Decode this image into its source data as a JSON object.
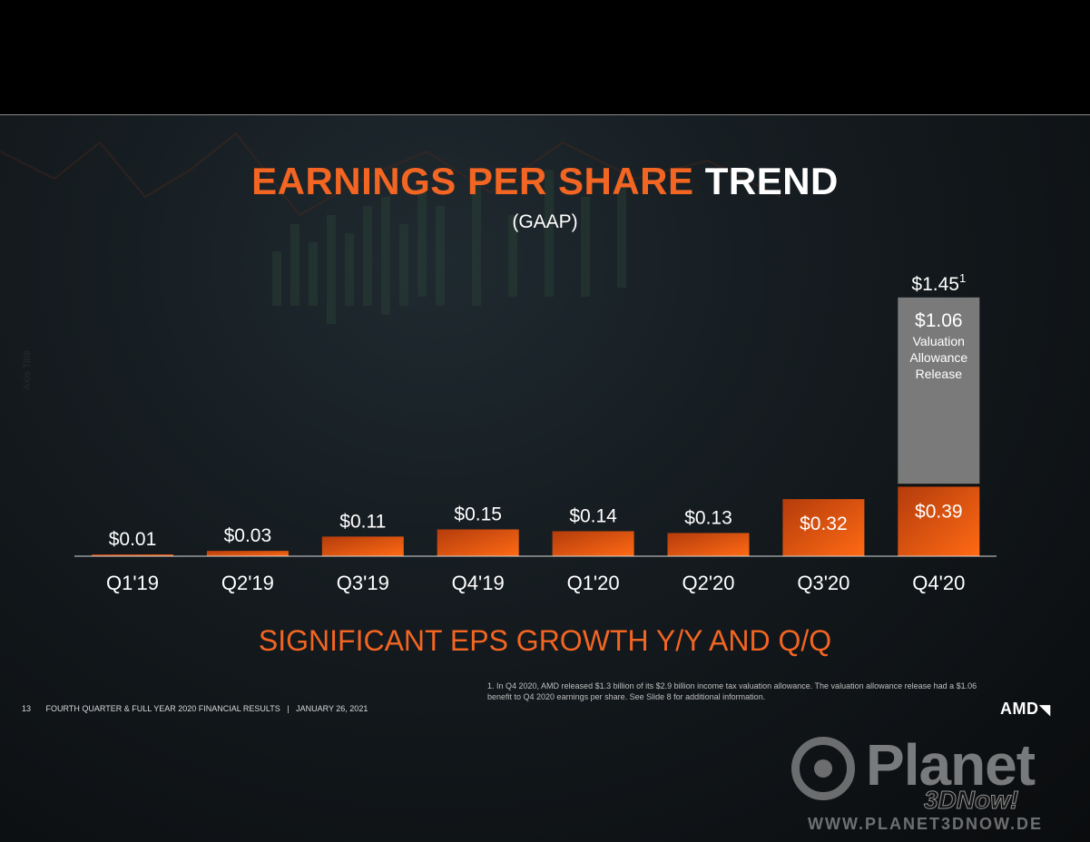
{
  "title": {
    "accent": "EARNINGS PER SHARE",
    "rest": "TREND"
  },
  "subtitle": "(GAAP)",
  "axis_title": "Axis Title",
  "tagline": "SIGNIFICANT EPS GROWTH Y/Y AND Q/Q",
  "footnote": "1. In Q4 2020, AMD released $1.3 billion of its $2.9 billion income tax valuation allowance.  The valuation allowance release had a $1.06 benefit to Q4 2020 earnings per share. See Slide 8 for additional information.",
  "footer": {
    "slide_number": "13",
    "text": "FOURTH QUARTER & FULL YEAR 2020 FINANCIAL RESULTS   |   JANUARY 26, 2021"
  },
  "logo": "AMD",
  "watermark": {
    "name": "Planet",
    "sub": "3DNow!",
    "url": "WWW.PLANET3DNOW.DE"
  },
  "colors": {
    "accent": "#f26522",
    "bar_top": "#b43c0c",
    "bar_bottom": "#ff6a14",
    "stack": "#7a7a7a",
    "background": "#141a1e"
  },
  "chart_data": {
    "type": "bar",
    "stacked": true,
    "categories": [
      "Q1'19",
      "Q2'19",
      "Q3'19",
      "Q4'19",
      "Q1'20",
      "Q2'20",
      "Q3'20",
      "Q4'20"
    ],
    "series": [
      {
        "values": [
          0.01,
          0.03,
          0.11,
          0.15,
          0.14,
          0.13,
          0.32,
          0.39
        ],
        "labels": [
          "$0.01",
          "$0.03",
          "$0.11",
          "$0.15",
          "$0.14",
          "$0.13",
          "$0.32",
          "$0.39"
        ]
      },
      {
        "name": "Valuation Allowance Release",
        "values": [
          0,
          0,
          0,
          0,
          0,
          0,
          0,
          1.06
        ],
        "labels": [
          "",
          "",
          "",
          "",
          "",
          "",
          "",
          "$1.06"
        ]
      }
    ],
    "totals": {
      "Q4'20": "$1.45"
    },
    "total_footnote_marker": "1",
    "stack_label_lines": [
      "Valuation",
      "Allowance",
      "Release"
    ],
    "ylim": [
      0,
      1.5
    ],
    "grid": false,
    "legend": "none"
  }
}
